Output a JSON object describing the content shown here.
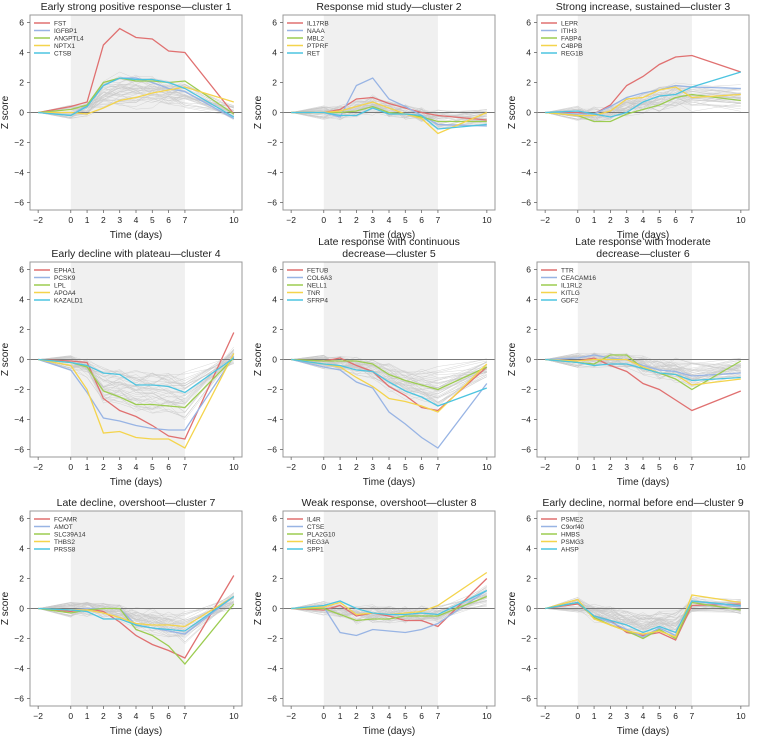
{
  "figure": {
    "xlabel": "Time (days)",
    "ylabel": "Z score",
    "xticks": [
      -2,
      0,
      1,
      2,
      3,
      4,
      5,
      6,
      7,
      10
    ],
    "yticks": [
      -6,
      -4,
      -2,
      0,
      2,
      4,
      6
    ],
    "xlim": [
      -2.5,
      10.5
    ],
    "ylim": [
      -6.5,
      6.5
    ],
    "shaded_region_x": [
      0,
      7
    ],
    "series_colors": [
      "#e07070",
      "#98b4e4",
      "#9ccc50",
      "#f4d44c",
      "#4cc4e0"
    ],
    "background_line_color": "#c8c8c8"
  },
  "chart_data": [
    {
      "type": "line",
      "title": [
        "Early strong positive response—cluster 1"
      ],
      "xlabel": "Time (days)",
      "ylabel": "Z score",
      "x": [
        -2,
        0,
        1,
        2,
        3,
        4,
        5,
        6,
        7,
        10
      ],
      "ylim": [
        -6.5,
        6.5
      ],
      "series": [
        {
          "name": "FST",
          "values": [
            0,
            0.4,
            0.7,
            4.5,
            5.6,
            5.0,
            4.9,
            4.1,
            4.0,
            -0.1
          ]
        },
        {
          "name": "IGFBP1",
          "values": [
            0,
            -0.2,
            0.5,
            1.8,
            2.3,
            2.3,
            2.0,
            1.6,
            1.4,
            -0.4
          ]
        },
        {
          "name": "ANGPTL4",
          "values": [
            0,
            0.2,
            0.5,
            2.0,
            2.3,
            2.1,
            2.1,
            2.0,
            2.1,
            -0.1
          ]
        },
        {
          "name": "NPTX1",
          "values": [
            0,
            0.0,
            -0.1,
            0.3,
            0.8,
            1.0,
            1.3,
            1.5,
            1.7,
            0.7
          ]
        },
        {
          "name": "CTSB",
          "values": [
            0,
            -0.2,
            0.4,
            1.8,
            2.3,
            2.2,
            2.2,
            2.0,
            1.6,
            -0.3
          ]
        }
      ]
    },
    {
      "type": "line",
      "title": [
        "Response mid study—cluster 2"
      ],
      "xlabel": "Time (days)",
      "ylabel": "Z score",
      "x": [
        -2,
        0,
        1,
        2,
        3,
        4,
        5,
        6,
        7,
        10
      ],
      "ylim": [
        -6.5,
        6.5
      ],
      "series": [
        {
          "name": "IL17RB",
          "values": [
            0,
            0.0,
            0.2,
            0.9,
            1.0,
            0.6,
            0.3,
            0.0,
            -0.2,
            -0.5
          ]
        },
        {
          "name": "NAAA",
          "values": [
            0,
            0.0,
            -0.3,
            1.8,
            2.3,
            0.9,
            0.4,
            -0.2,
            -0.8,
            -0.9
          ]
        },
        {
          "name": "MBL2",
          "values": [
            0,
            0.0,
            0.0,
            0.1,
            0.4,
            0.0,
            -0.1,
            -0.3,
            -0.6,
            -0.6
          ]
        },
        {
          "name": "PTPRF",
          "values": [
            0,
            0.0,
            0.1,
            0.4,
            0.7,
            0.3,
            -0.1,
            -0.4,
            -1.4,
            0.0
          ]
        },
        {
          "name": "RET",
          "values": [
            0,
            0.0,
            -0.2,
            -0.2,
            0.3,
            -0.1,
            -0.1,
            -0.2,
            -1.1,
            -0.8
          ]
        }
      ]
    },
    {
      "type": "line",
      "title": [
        "Strong increase, sustained—cluster 3"
      ],
      "xlabel": "Time (days)",
      "ylabel": "Z score",
      "x": [
        -2,
        0,
        1,
        2,
        3,
        4,
        5,
        6,
        7,
        10
      ],
      "ylim": [
        -6.5,
        6.5
      ],
      "series": [
        {
          "name": "LEPR",
          "values": [
            0,
            0.0,
            -0.1,
            0.5,
            1.8,
            2.4,
            3.2,
            3.7,
            3.8,
            2.7
          ]
        },
        {
          "name": "ITIH3",
          "values": [
            0,
            -0.1,
            -0.1,
            0.4,
            1.0,
            1.3,
            1.5,
            1.8,
            1.7,
            1.6
          ]
        },
        {
          "name": "FABP4",
          "values": [
            0,
            -0.2,
            -0.6,
            -0.6,
            -0.1,
            0.2,
            0.5,
            1.0,
            1.2,
            0.8
          ]
        },
        {
          "name": "C4BPB",
          "values": [
            0,
            -0.2,
            -0.2,
            0.1,
            0.9,
            1.0,
            1.5,
            1.7,
            1.0,
            1.2
          ]
        },
        {
          "name": "REG1B",
          "values": [
            0,
            0.1,
            -0.1,
            -0.3,
            0.0,
            0.7,
            1.1,
            1.2,
            1.7,
            2.7
          ]
        }
      ]
    },
    {
      "type": "line",
      "title": [
        "Early decline with plateau—cluster 4"
      ],
      "xlabel": "Time (days)",
      "ylabel": "Z score",
      "x": [
        -2,
        0,
        1,
        2,
        3,
        4,
        5,
        6,
        7,
        10
      ],
      "ylim": [
        -6.5,
        6.5
      ],
      "series": [
        {
          "name": "EPHA1",
          "values": [
            0,
            -0.1,
            -0.2,
            -2.6,
            -3.4,
            -3.8,
            -4.4,
            -5.1,
            -5.3,
            1.8
          ]
        },
        {
          "name": "PCSK9",
          "values": [
            0,
            -0.7,
            -2.2,
            -3.9,
            -4.1,
            -4.4,
            -4.6,
            -4.7,
            -4.7,
            0.2
          ]
        },
        {
          "name": "LPL",
          "values": [
            0,
            -0.2,
            -0.5,
            -2.1,
            -2.5,
            -3.0,
            -3.0,
            -3.1,
            -3.2,
            0.1
          ]
        },
        {
          "name": "APOA4",
          "values": [
            0,
            -0.4,
            -2.0,
            -4.9,
            -4.8,
            -5.2,
            -5.3,
            -5.3,
            -5.9,
            0.4
          ]
        },
        {
          "name": "KAZALD1",
          "values": [
            0,
            -0.2,
            -0.4,
            -0.9,
            -1.0,
            -1.7,
            -1.7,
            -1.8,
            -2.2,
            0.1
          ]
        }
      ]
    },
    {
      "type": "line",
      "title": [
        "Late response with continuous",
        "decrease—cluster 5"
      ],
      "xlabel": "Time (days)",
      "ylabel": "Z score",
      "x": [
        -2,
        0,
        1,
        2,
        3,
        4,
        5,
        6,
        7,
        10
      ],
      "ylim": [
        -6.5,
        6.5
      ],
      "series": [
        {
          "name": "FETUB",
          "values": [
            0,
            -0.1,
            0.1,
            -0.4,
            -0.8,
            -1.8,
            -2.4,
            -3.2,
            -3.4,
            -0.5
          ]
        },
        {
          "name": "COL6A3",
          "values": [
            0,
            -0.5,
            -0.7,
            -1.5,
            -1.9,
            -3.5,
            -4.3,
            -5.2,
            -5.9,
            -1.6
          ]
        },
        {
          "name": "NELL1",
          "values": [
            0,
            -0.1,
            -0.1,
            -0.1,
            -0.3,
            -1.0,
            -1.4,
            -1.7,
            -2.0,
            -0.5
          ]
        },
        {
          "name": "TNR",
          "values": [
            0,
            -0.3,
            -0.5,
            -1.2,
            -1.8,
            -2.6,
            -2.8,
            -3.1,
            -3.5,
            -0.3
          ]
        },
        {
          "name": "SFRP4",
          "values": [
            0,
            -0.3,
            -0.4,
            -0.7,
            -0.8,
            -1.5,
            -2.1,
            -2.5,
            -3.1,
            -1.9
          ]
        }
      ]
    },
    {
      "type": "line",
      "title": [
        "Late response with moderate",
        "decrease—cluster 6"
      ],
      "xlabel": "Time (days)",
      "ylabel": "Z score",
      "x": [
        -2,
        0,
        1,
        2,
        3,
        4,
        5,
        6,
        7,
        10
      ],
      "ylim": [
        -6.5,
        6.5
      ],
      "series": [
        {
          "name": "TTR",
          "values": [
            0,
            -0.1,
            0.1,
            -0.4,
            -0.8,
            -1.6,
            -2.0,
            -2.7,
            -3.4,
            -2.1
          ]
        },
        {
          "name": "CEACAM16",
          "values": [
            0,
            0.1,
            0.3,
            0.1,
            0.0,
            -0.4,
            -0.7,
            -0.8,
            -1.1,
            -0.9
          ]
        },
        {
          "name": "IL1RL2",
          "values": [
            0,
            -0.2,
            -0.3,
            0.3,
            0.3,
            -0.6,
            -0.9,
            -1.3,
            -2.0,
            -0.1
          ]
        },
        {
          "name": "KITLG",
          "values": [
            0,
            -0.1,
            0.0,
            0.0,
            0.0,
            -0.5,
            -0.9,
            -1.0,
            -1.7,
            -1.3
          ]
        },
        {
          "name": "GDF2",
          "values": [
            0,
            -0.2,
            -0.4,
            -0.3,
            -0.3,
            -0.6,
            -0.9,
            -1.0,
            -1.4,
            -1.2
          ]
        }
      ]
    },
    {
      "type": "line",
      "title": [
        "Late decline, overshoot—cluster 7"
      ],
      "xlabel": "Time (days)",
      "ylabel": "Z score",
      "x": [
        -2,
        0,
        1,
        2,
        3,
        4,
        5,
        6,
        7,
        10
      ],
      "ylim": [
        -6.5,
        6.5
      ],
      "series": [
        {
          "name": "FCAMR",
          "values": [
            0,
            -0.2,
            0.0,
            -0.2,
            -0.9,
            -1.8,
            -2.4,
            -2.8,
            -3.3,
            2.2
          ]
        },
        {
          "name": "AMOT",
          "values": [
            0,
            -0.1,
            0.0,
            0.0,
            0.0,
            -1.1,
            -1.3,
            -1.5,
            -1.7,
            0.8
          ]
        },
        {
          "name": "SLC39A14",
          "values": [
            0,
            -0.3,
            -0.1,
            0.0,
            0.0,
            -1.4,
            -1.8,
            -2.5,
            -3.7,
            0.3
          ]
        },
        {
          "name": "THBS2",
          "values": [
            0,
            -0.1,
            -0.1,
            -0.3,
            -0.6,
            -1.0,
            -1.1,
            -1.1,
            -1.2,
            0.8
          ]
        },
        {
          "name": "PRSS8",
          "values": [
            0,
            -0.1,
            -0.2,
            -0.7,
            -0.7,
            -1.1,
            -1.3,
            -1.4,
            -1.5,
            0.8
          ]
        }
      ]
    },
    {
      "type": "line",
      "title": [
        "Weak response, overshoot—cluster 8"
      ],
      "xlabel": "Time (days)",
      "ylabel": "Z score",
      "x": [
        -2,
        0,
        1,
        2,
        3,
        4,
        5,
        6,
        7,
        10
      ],
      "ylim": [
        -6.5,
        6.5
      ],
      "series": [
        {
          "name": "IL4R",
          "values": [
            0,
            -0.1,
            0.2,
            -0.5,
            -0.3,
            -0.5,
            -0.8,
            -0.8,
            -1.2,
            2.0
          ]
        },
        {
          "name": "CTSE",
          "values": [
            0,
            0.1,
            -1.6,
            -1.8,
            -1.4,
            -1.5,
            -1.6,
            -1.4,
            -1.0,
            1.2
          ]
        },
        {
          "name": "PLA2G10",
          "values": [
            0,
            0.0,
            -0.4,
            -0.8,
            -0.7,
            -0.7,
            -0.5,
            -0.5,
            -0.5,
            0.8
          ]
        },
        {
          "name": "REG3A",
          "values": [
            0,
            0.1,
            0.4,
            -0.4,
            -0.3,
            -0.4,
            -0.3,
            -0.2,
            0.2,
            2.4
          ]
        },
        {
          "name": "SPP1",
          "values": [
            0,
            0.2,
            0.5,
            0.0,
            -0.3,
            -0.4,
            -0.4,
            -0.3,
            -0.4,
            1.2
          ]
        }
      ]
    },
    {
      "type": "line",
      "title": [
        "Early decline, normal before end—cluster 9"
      ],
      "xlabel": "Time (days)",
      "ylabel": "Z score",
      "x": [
        -2,
        0,
        1,
        2,
        3,
        4,
        5,
        6,
        7,
        10
      ],
      "ylim": [
        -6.5,
        6.5
      ],
      "series": [
        {
          "name": "PSME2",
          "values": [
            0,
            0.3,
            -0.5,
            -0.8,
            -1.6,
            -1.8,
            -1.6,
            -2.1,
            0.2,
            0.3
          ]
        },
        {
          "name": "C9orf40",
          "values": [
            0,
            0.4,
            -0.6,
            -0.9,
            -1.4,
            -1.9,
            -1.3,
            -1.8,
            0.5,
            0.1
          ]
        },
        {
          "name": "HMBS",
          "values": [
            0,
            0.4,
            -0.6,
            -1.1,
            -1.5,
            -2.0,
            -1.4,
            -2.0,
            0.4,
            -0.1
          ]
        },
        {
          "name": "PSMG3",
          "values": [
            0,
            0.6,
            -0.7,
            -1.1,
            -1.5,
            -1.7,
            -1.5,
            -1.9,
            0.9,
            0.4
          ]
        },
        {
          "name": "AHSP",
          "values": [
            0,
            0.4,
            -0.5,
            -0.8,
            -1.1,
            -1.6,
            -1.2,
            -1.6,
            0.5,
            0.2
          ]
        }
      ]
    }
  ]
}
